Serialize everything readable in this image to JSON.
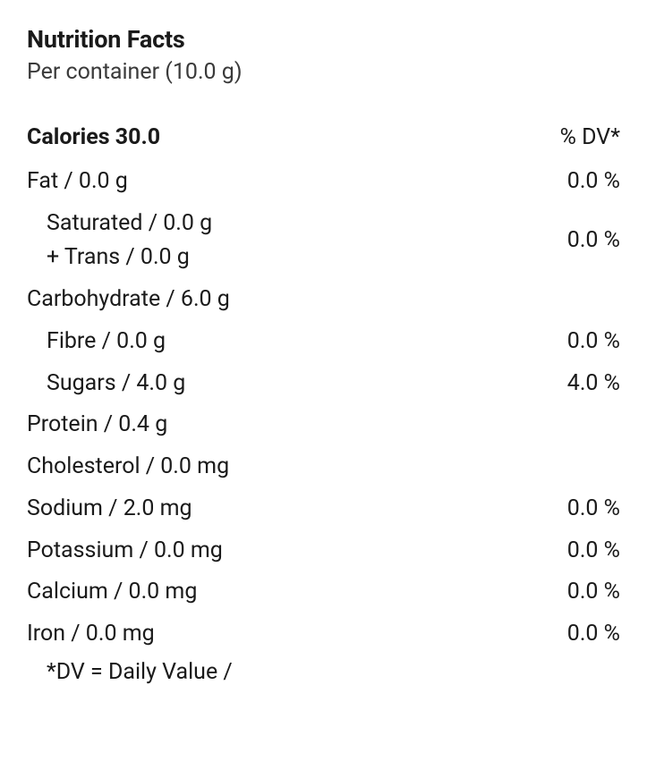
{
  "header": {
    "title": "Nutrition Facts",
    "serving": "Per container (10.0 g)"
  },
  "calories": {
    "label": "Calories 30.0",
    "dv_header": "% DV*"
  },
  "rows": {
    "fat": {
      "label": "Fat / 0.0 g",
      "dv": "0.0 %"
    },
    "sat": {
      "label": "Saturated / 0.0 g"
    },
    "trans": {
      "label": "+ Trans / 0.0 g"
    },
    "sat_trans_dv": "0.0 %",
    "carb": {
      "label": "Carbohydrate / 6.0 g"
    },
    "fibre": {
      "label": "Fibre / 0.0 g",
      "dv": "0.0 %"
    },
    "sugars": {
      "label": "Sugars / 4.0 g",
      "dv": "4.0 %"
    },
    "protein": {
      "label": "Protein / 0.4 g"
    },
    "cholesterol": {
      "label": "Cholesterol / 0.0 mg"
    },
    "sodium": {
      "label": "Sodium / 2.0 mg",
      "dv": "0.0 %"
    },
    "potassium": {
      "label": "Potassium / 0.0 mg",
      "dv": "0.0 %"
    },
    "calcium": {
      "label": "Calcium / 0.0 mg",
      "dv": "0.0 %"
    },
    "iron": {
      "label": "Iron / 0.0 mg",
      "dv": "0.0 %"
    }
  },
  "footnote": "*DV = Daily Value /"
}
